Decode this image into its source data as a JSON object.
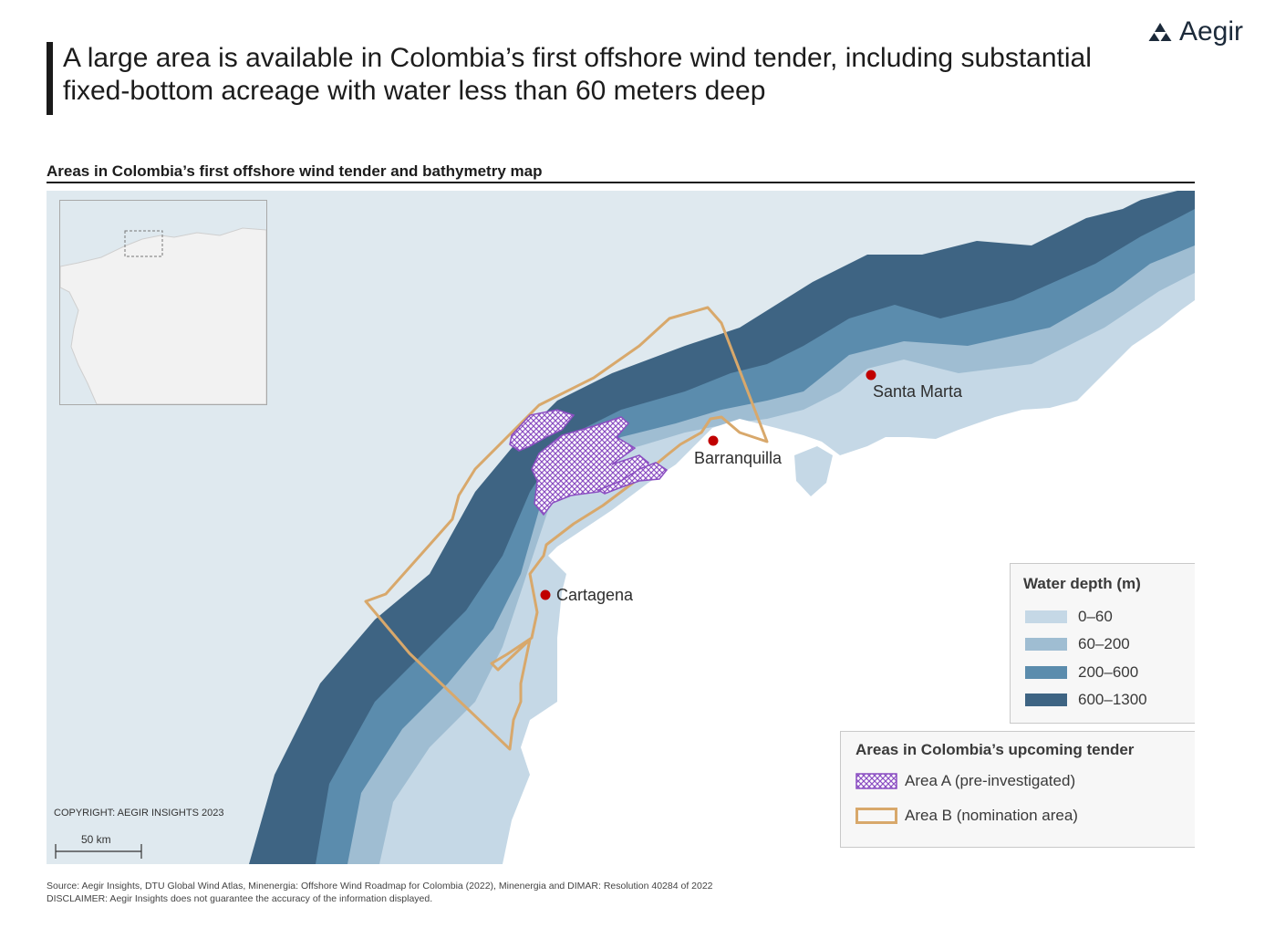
{
  "brand": {
    "name": "Aegir"
  },
  "title": "A large area is available in Colombia’s first offshore wind tender, including substantial fixed-bottom acreage with water less than 60 meters deep",
  "subtitle": "Areas in Colombia’s first offshore wind tender and bathymetry map",
  "map": {
    "cities": [
      {
        "name": "Santa Marta"
      },
      {
        "name": "Barranquilla"
      },
      {
        "name": "Cartagena"
      }
    ],
    "copyright": "COPYRIGHT: AEGIR INSIGHTS 2023",
    "scale_label": "50 km",
    "colors": {
      "sea": "#dfe9ef",
      "land": "#ffffff",
      "depth_0_60": "#c5d8e6",
      "depth_60_200": "#9fbdd2",
      "depth_200_600": "#5b8cad",
      "depth_600_1300": "#3e6483",
      "area_a": "#8b4fc2",
      "area_b": "#d8a86b",
      "city_marker": "#c00000"
    }
  },
  "legend_depth": {
    "title": "Water depth (m)",
    "items": [
      {
        "label": "0–60",
        "color": "#c5d8e6"
      },
      {
        "label": "60–200",
        "color": "#9fbdd2"
      },
      {
        "label": "200–600",
        "color": "#5b8cad"
      },
      {
        "label": "600–1300",
        "color": "#3e6483"
      }
    ]
  },
  "legend_areas": {
    "title": "Areas in Colombia’s upcoming tender",
    "items": [
      {
        "label": "Area A (pre-investigated)"
      },
      {
        "label": "Area B (nomination area)"
      }
    ]
  },
  "source": "Source: Aegir Insights, DTU Global Wind Atlas, Minenergia: Offshore Wind Roadmap for Colombia (2022), Minenergia and DIMAR: Resolution 40284 of 2022",
  "disclaimer": "DISCLAIMER: Aegir Insights does not guarantee the accuracy of the information displayed."
}
